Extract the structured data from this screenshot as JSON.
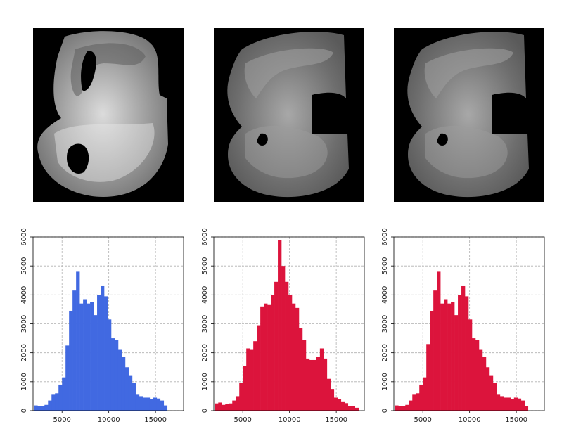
{
  "images": [
    {
      "name": "brain-section-original",
      "palette": "grayscale"
    },
    {
      "name": "brain-section-normalized-1",
      "palette": "grayscale"
    },
    {
      "name": "brain-section-normalized-2",
      "palette": "grayscale"
    }
  ],
  "chart_data": [
    {
      "type": "bar",
      "title": "",
      "xlabel": "",
      "ylabel": "",
      "color": "#4169E1",
      "grid": true,
      "xlim": [
        1900,
        18000
      ],
      "ylim": [
        0,
        6000
      ],
      "xticks": [
        5000,
        10000,
        15000
      ],
      "yticks": [
        0,
        1000,
        2000,
        3000,
        4000,
        5000,
        6000
      ],
      "bin_start": 2000,
      "bin_width": 375,
      "values": [
        180,
        150,
        160,
        200,
        350,
        550,
        600,
        900,
        1150,
        2250,
        3450,
        4150,
        4800,
        3700,
        3850,
        3700,
        3750,
        3300,
        4000,
        4300,
        3950,
        3150,
        2500,
        2450,
        2100,
        1850,
        1500,
        1200,
        950,
        550,
        500,
        450,
        450,
        400,
        450,
        420,
        350,
        180
      ]
    },
    {
      "type": "bar",
      "title": "",
      "xlabel": "",
      "ylabel": "",
      "color": "#DC143C",
      "grid": true,
      "xlim": [
        1900,
        18000
      ],
      "ylim": [
        0,
        6000
      ],
      "xticks": [
        5000,
        10000,
        15000
      ],
      "yticks": [
        0,
        1000,
        2000,
        3000,
        4000,
        5000,
        6000
      ],
      "bin_start": 2000,
      "bin_width": 375,
      "values": [
        250,
        280,
        200,
        220,
        250,
        350,
        500,
        950,
        1550,
        2150,
        2100,
        2400,
        2950,
        3600,
        3700,
        3650,
        4000,
        4450,
        5900,
        5000,
        4450,
        4000,
        3700,
        3550,
        2850,
        2450,
        1800,
        1750,
        1750,
        1850,
        2150,
        1800,
        1100,
        750,
        450,
        400,
        320,
        260,
        170,
        150,
        100
      ]
    },
    {
      "type": "bar",
      "title": "",
      "xlabel": "",
      "ylabel": "",
      "color": "#DC143C",
      "grid": true,
      "xlim": [
        1900,
        18000
      ],
      "ylim": [
        0,
        6000
      ],
      "xticks": [
        5000,
        10000,
        15000
      ],
      "yticks": [
        0,
        1000,
        2000,
        3000,
        4000,
        5000,
        6000
      ],
      "bin_start": 2000,
      "bin_width": 375,
      "values": [
        180,
        150,
        160,
        200,
        350,
        550,
        600,
        900,
        1150,
        2300,
        3450,
        4150,
        4800,
        3700,
        3850,
        3700,
        3750,
        3300,
        4000,
        4300,
        3950,
        3150,
        2500,
        2450,
        2100,
        1850,
        1500,
        1200,
        950,
        550,
        500,
        450,
        450,
        400,
        450,
        420,
        350,
        150
      ]
    }
  ]
}
